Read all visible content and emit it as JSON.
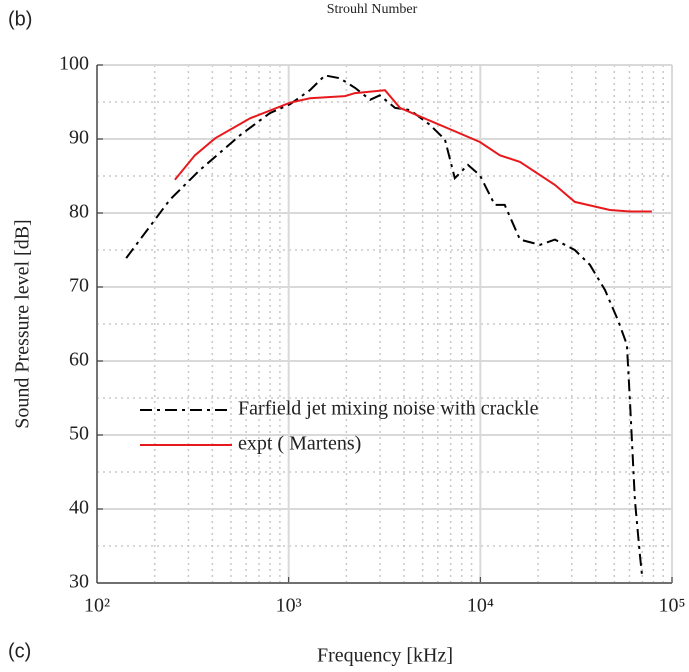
{
  "chart_data": {
    "type": "line",
    "panel_label_top": "(b)",
    "title": "Strouhl Number",
    "panel_label_bottom": "(c)",
    "xlabel": "Frequency [kHz]",
    "ylabel": "Sound Pressure level [dB]",
    "xscale": "log",
    "xlim": [
      100,
      100000
    ],
    "ylim": [
      30,
      100
    ],
    "xticks": [
      {
        "value": 100,
        "label": "10²"
      },
      {
        "value": 1000,
        "label": "10³"
      },
      {
        "value": 10000,
        "label": "10⁴"
      },
      {
        "value": 100000,
        "label": "10⁵"
      }
    ],
    "yticks": [
      30,
      40,
      50,
      60,
      70,
      80,
      90,
      100
    ],
    "xminorticks": [
      200,
      300,
      400,
      500,
      600,
      700,
      800,
      900,
      2000,
      3000,
      4000,
      5000,
      6000,
      7000,
      8000,
      9000,
      20000,
      30000,
      40000,
      50000,
      60000,
      70000,
      80000,
      90000
    ],
    "yminorticks": [
      35,
      45,
      55,
      65,
      75,
      85,
      95
    ],
    "grid": true,
    "minor_grid": true,
    "legend": "lower left",
    "series": [
      {
        "name": "Farfield jet mixing noise with crackle",
        "color": "#000000",
        "style": "dashdot",
        "x": [
          142,
          240,
          344,
          557,
          798,
          1016,
          1290,
          1546,
          1853,
          2220,
          2660,
          2990,
          3590,
          4300,
          5460,
          6540,
          7360,
          8610,
          9950,
          11900,
          13400,
          16100,
          20500,
          24500,
          31100,
          37300,
          44700,
          52300,
          58200,
          60300,
          64000,
          68000,
          69700
        ],
        "values": [
          73.9,
          81.8,
          85.8,
          90.5,
          93.5,
          94.7,
          96.6,
          98.6,
          98.2,
          96.9,
          95.3,
          95.9,
          94.2,
          93.9,
          91.9,
          89.9,
          84.7,
          86.5,
          85.1,
          81.1,
          81.1,
          76.4,
          75.7,
          76.4,
          75.0,
          73.0,
          69.6,
          65.5,
          62.2,
          54.7,
          41.2,
          33.8,
          31.1
        ]
      },
      {
        "name": "expt ( Martens)",
        "color": "#e8191c",
        "style": "solid",
        "x": [
          255,
          324,
          413,
          629,
          1016,
          1290,
          1966,
          2220,
          3180,
          3810,
          6150,
          9950,
          12650,
          16100,
          24500,
          31100,
          47400,
          60300,
          78500
        ],
        "values": [
          84.5,
          87.8,
          90.1,
          92.8,
          94.9,
          95.5,
          95.8,
          96.2,
          96.6,
          94.2,
          91.9,
          89.6,
          87.8,
          86.9,
          83.8,
          81.5,
          80.4,
          80.2,
          80.2
        ]
      }
    ]
  }
}
